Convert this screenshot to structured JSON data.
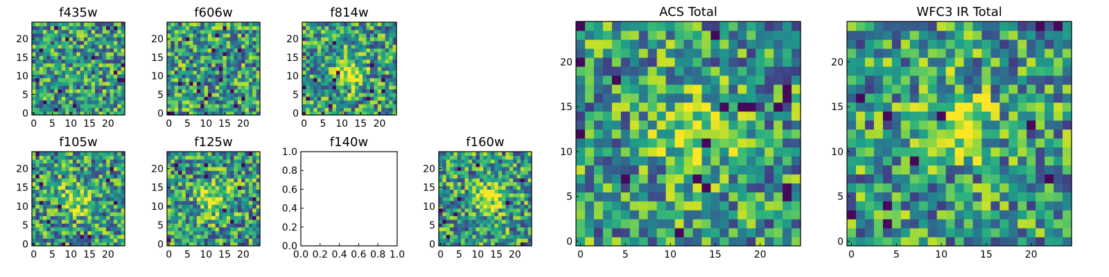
{
  "chart_data": [
    {
      "type": "heatmap",
      "title": "f435w",
      "x_ticks": [
        "0",
        "5",
        "10",
        "15",
        "20"
      ],
      "y_ticks": [
        "0",
        "5",
        "10",
        "15",
        "20"
      ],
      "xlim": [
        -0.5,
        24.5
      ],
      "ylim": [
        -0.5,
        24.5
      ],
      "grid_size": 25,
      "colormap": "viridis",
      "has_data": true,
      "hotspot": null
    },
    {
      "type": "heatmap",
      "title": "f606w",
      "x_ticks": [
        "0",
        "5",
        "10",
        "15",
        "20"
      ],
      "y_ticks": [
        "0",
        "5",
        "10",
        "15",
        "20"
      ],
      "xlim": [
        -0.5,
        24.5
      ],
      "ylim": [
        -0.5,
        24.5
      ],
      "grid_size": 25,
      "colormap": "viridis",
      "has_data": true,
      "hotspot": null
    },
    {
      "type": "heatmap",
      "title": "f814w",
      "x_ticks": [
        "0",
        "5",
        "10",
        "15",
        "20"
      ],
      "y_ticks": [
        "0",
        "5",
        "10",
        "15",
        "20"
      ],
      "xlim": [
        -0.5,
        24.5
      ],
      "ylim": [
        -0.5,
        24.5
      ],
      "grid_size": 25,
      "colormap": "viridis",
      "has_data": true,
      "hotspot": [
        12,
        11
      ]
    },
    {
      "type": "heatmap",
      "title": "f105w",
      "x_ticks": [
        "0",
        "5",
        "10",
        "15",
        "20"
      ],
      "y_ticks": [
        "0",
        "5",
        "10",
        "15",
        "20"
      ],
      "xlim": [
        -0.5,
        24.5
      ],
      "ylim": [
        -0.5,
        24.5
      ],
      "grid_size": 25,
      "colormap": "viridis",
      "has_data": true,
      "hotspot": [
        11,
        12
      ]
    },
    {
      "type": "heatmap",
      "title": "f125w",
      "x_ticks": [
        "0",
        "5",
        "10",
        "15",
        "20"
      ],
      "y_ticks": [
        "0",
        "5",
        "10",
        "15",
        "20"
      ],
      "xlim": [
        -0.5,
        24.5
      ],
      "ylim": [
        -0.5,
        24.5
      ],
      "grid_size": 25,
      "colormap": "viridis",
      "has_data": true,
      "hotspot": [
        12,
        12
      ]
    },
    {
      "type": "heatmap",
      "title": "f140w",
      "x_ticks": [
        "0.0",
        "0.2",
        "0.4",
        "0.6",
        "0.8",
        "1.0"
      ],
      "y_ticks": [
        "0.0",
        "0.2",
        "0.4",
        "0.6",
        "0.8",
        "1.0"
      ],
      "xlim": [
        0,
        1
      ],
      "ylim": [
        0,
        1
      ],
      "grid_size": 0,
      "colormap": "viridis",
      "has_data": false,
      "hotspot": null
    },
    {
      "type": "heatmap",
      "title": "f160w",
      "x_ticks": [
        "0",
        "5",
        "10",
        "15",
        "20"
      ],
      "y_ticks": [
        "0",
        "5",
        "10",
        "15",
        "20"
      ],
      "xlim": [
        -0.5,
        24.5
      ],
      "ylim": [
        -0.5,
        24.5
      ],
      "grid_size": 25,
      "colormap": "viridis",
      "has_data": true,
      "hotspot": [
        13,
        12
      ]
    },
    {
      "type": "heatmap",
      "title": "ACS Total",
      "x_ticks": [
        "0",
        "5",
        "10",
        "15",
        "20"
      ],
      "y_ticks": [
        "0",
        "5",
        "10",
        "15",
        "20"
      ],
      "xlim": [
        -0.5,
        24.5
      ],
      "ylim": [
        -0.5,
        24.5
      ],
      "grid_size": 25,
      "colormap": "viridis",
      "has_data": true,
      "hotspot": [
        13,
        12
      ]
    },
    {
      "type": "heatmap",
      "title": "WFC3 IR Total",
      "x_ticks": [
        "0",
        "5",
        "10",
        "15",
        "20"
      ],
      "y_ticks": [
        "0",
        "5",
        "10",
        "15",
        "20"
      ],
      "xlim": [
        -0.5,
        24.5
      ],
      "ylim": [
        -0.5,
        24.5
      ],
      "grid_size": 25,
      "colormap": "viridis",
      "has_data": true,
      "hotspot": [
        12,
        13
      ]
    }
  ]
}
